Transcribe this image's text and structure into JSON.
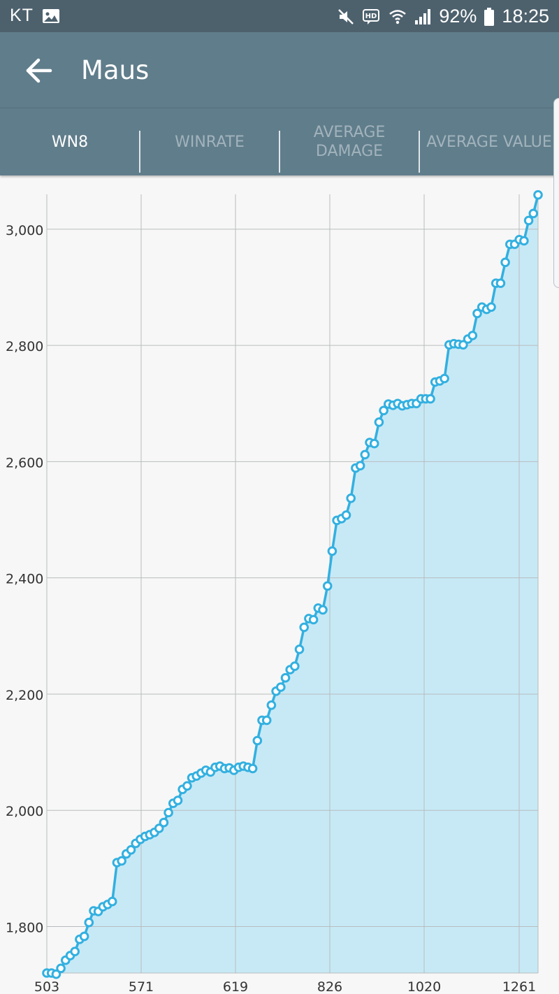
{
  "status_bar": {
    "carrier": "KT",
    "battery": "92%",
    "time": "18:25",
    "icons": [
      "image-icon",
      "muted-icon",
      "hd-icon",
      "wifi-icon",
      "signal-icon",
      "battery-icon"
    ]
  },
  "app_bar": {
    "title": "Maus",
    "back_icon": "arrow-left-icon"
  },
  "tabs": [
    {
      "label": "WN8",
      "active": true
    },
    {
      "label": "WINRATE",
      "active": false
    },
    {
      "label": "AVERAGE DAMAGE",
      "active": false
    },
    {
      "label": "AVERAGE VALUE",
      "active": false
    }
  ],
  "colors": {
    "status_bar": "#4d616d",
    "app_bar": "#607d8b",
    "line": "#33b0e0",
    "fill": "#c7e9f6",
    "grid": "#b8bcbe"
  },
  "chart_data": {
    "type": "line",
    "title": "",
    "xlabel": "",
    "ylabel": "",
    "grid": true,
    "xlim": [
      503,
      1289
    ],
    "ylim": [
      1720,
      3060
    ],
    "x_ticks": [
      503,
      571,
      619,
      826,
      1020,
      1261
    ],
    "x_tick_labels": [
      "503",
      "571",
      "619",
      "826",
      "1020",
      "1261"
    ],
    "y_ticks": [
      1800,
      2000,
      2200,
      2400,
      2600,
      2800,
      3000
    ],
    "y_tick_labels": [
      "1,800",
      "2,000",
      "2,200",
      "2,400",
      "2,600",
      "2,800",
      "3,000"
    ],
    "series": [
      {
        "values": [
          1720,
          1720,
          1718,
          1728,
          1742,
          1750,
          1757,
          1778,
          1783,
          1807,
          1827,
          1826,
          1834,
          1838,
          1843,
          1910,
          1913,
          1925,
          1932,
          1943,
          1950,
          1955,
          1958,
          1962,
          1969,
          1979,
          1996,
          2012,
          2017,
          2036,
          2042,
          2056,
          2059,
          2064,
          2069,
          2066,
          2074,
          2076,
          2072,
          2073,
          2069,
          2074,
          2076,
          2074,
          2072,
          2120,
          2155,
          2155,
          2181,
          2205,
          2212,
          2228,
          2242,
          2248,
          2277,
          2315,
          2330,
          2328,
          2348,
          2345,
          2386,
          2446,
          2499,
          2502,
          2508,
          2537,
          2589,
          2593,
          2612,
          2633,
          2631,
          2668,
          2688,
          2699,
          2697,
          2700,
          2696,
          2698,
          2700,
          2700,
          2708,
          2708,
          2708,
          2737,
          2739,
          2743,
          2801,
          2803,
          2802,
          2801,
          2811,
          2817,
          2855,
          2866,
          2862,
          2866,
          2907,
          2907,
          2943,
          2974,
          2974,
          2982,
          2980,
          3015,
          3027,
          3059
        ]
      }
    ]
  }
}
